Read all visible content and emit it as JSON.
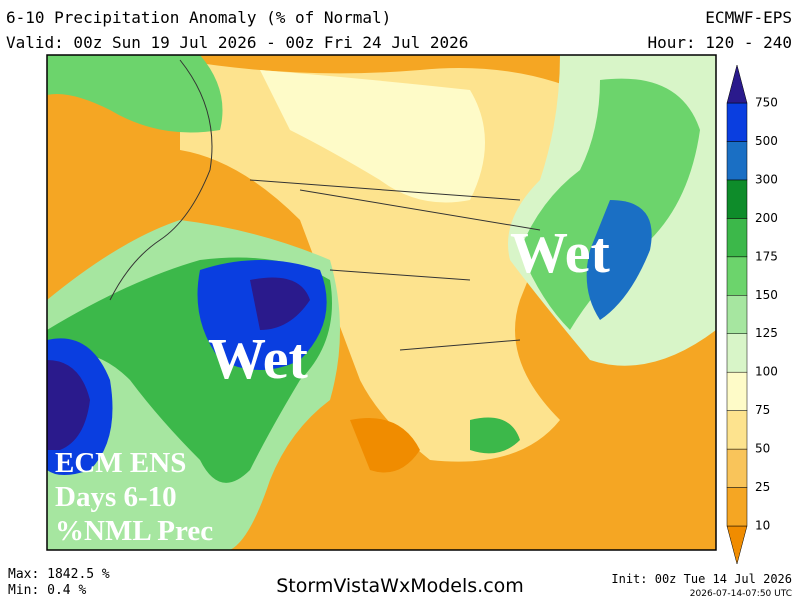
{
  "header": {
    "title": "6-10 Precipitation Anomaly (% of Normal)",
    "model": "ECMWF-EPS",
    "valid": "Valid: 00z Sun 19 Jul 2026 - 00z Fri 24 Jul 2026",
    "hour": "Hour: 120 - 240"
  },
  "map": {
    "annotations": [
      "Wet",
      "Wet"
    ],
    "label": [
      "ECM ENS",
      "Days 6-10",
      "%NML Prec"
    ]
  },
  "legend": {
    "levels": [
      10,
      25,
      50,
      75,
      100,
      125,
      150,
      175,
      200,
      300,
      500,
      750
    ],
    "colors": [
      "#f08c00",
      "#f5a623",
      "#f9c45a",
      "#fde38e",
      "#fefbc8",
      "#d8f5c8",
      "#a6e6a0",
      "#6cd46c",
      "#3cb84a",
      "#0e8c2a",
      "#1a6fc4",
      "#0a3ee0",
      "#2a1a8c"
    ]
  },
  "footer": {
    "max": "Max: 1842.5 %",
    "min": "Min: 0.4 %",
    "site": "StormVistaWxModels.com",
    "init": "Init: 00z Tue 14 Jul 2026",
    "stamp": "2026-07-14-07:50 UTC"
  }
}
